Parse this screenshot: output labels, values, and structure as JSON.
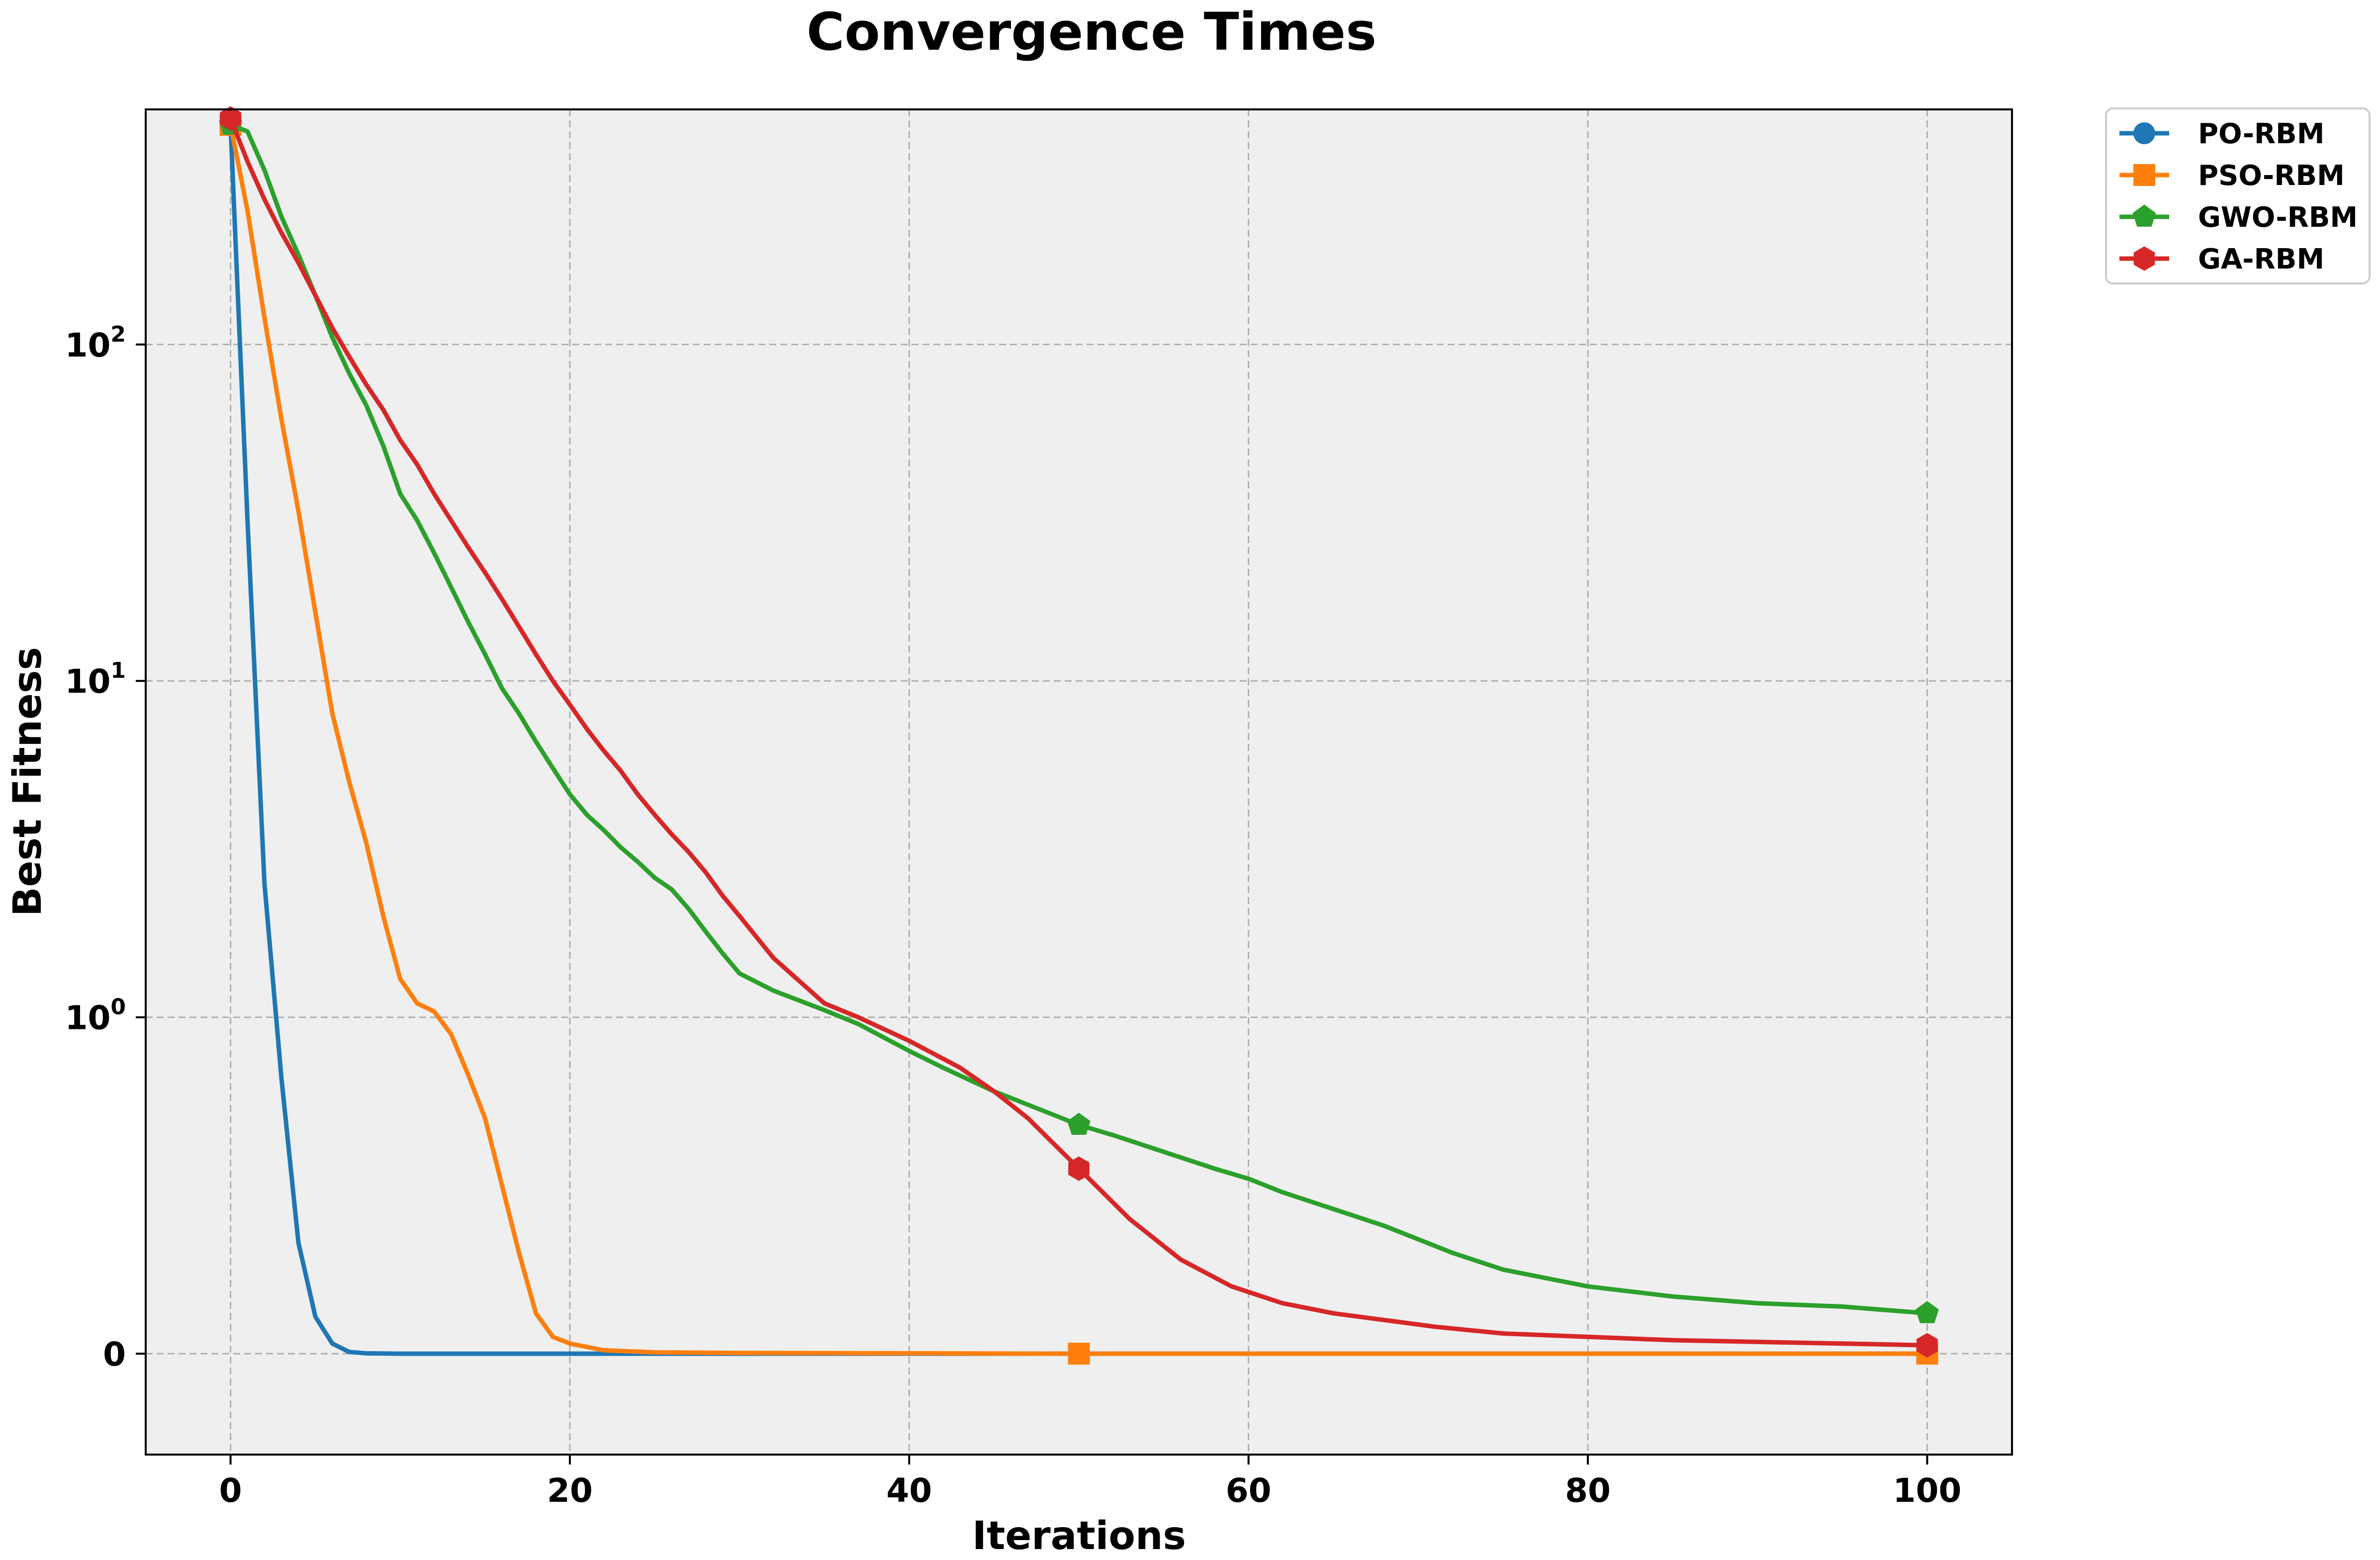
{
  "chart_data": {
    "type": "line",
    "title": "Convergence Times",
    "xlabel": "Iterations",
    "ylabel": "Best Fitness",
    "xlim": [
      -5,
      105
    ],
    "yscale": "symlog",
    "y_linthresh": 1,
    "ylim": [
      -0.3,
      500
    ],
    "grid": true,
    "legend_position": "outside-top-right",
    "x_ticks": [
      {
        "value": 0,
        "label": "0"
      },
      {
        "value": 20,
        "label": "20"
      },
      {
        "value": 40,
        "label": "40"
      },
      {
        "value": 60,
        "label": "60"
      },
      {
        "value": 80,
        "label": "80"
      },
      {
        "value": 100,
        "label": "100"
      }
    ],
    "y_ticks": [
      {
        "value": 0,
        "base": "0",
        "exp": ""
      },
      {
        "value": 1,
        "base": "10",
        "exp": "0"
      },
      {
        "value": 10,
        "base": "10",
        "exp": "1"
      },
      {
        "value": 100,
        "base": "10",
        "exp": "2"
      }
    ],
    "marker_every": 50,
    "series": [
      {
        "name": "PO-RBM",
        "color": "#1f77b4",
        "marker": "circle",
        "x": [
          0,
          1,
          2,
          3,
          4,
          5,
          6,
          7,
          8,
          10,
          15,
          20,
          30,
          50,
          100
        ],
        "y": [
          450,
          30,
          2.5,
          0.82,
          0.33,
          0.11,
          0.03,
          0.005,
          0.001,
          0,
          0,
          0,
          0,
          0,
          0
        ]
      },
      {
        "name": "PSO-RBM",
        "color": "#ff7f0e",
        "marker": "square",
        "x": [
          0,
          1,
          2,
          3,
          4,
          5,
          6,
          7,
          8,
          9,
          10,
          11,
          12,
          13,
          14,
          15,
          16,
          17,
          18,
          19,
          20,
          21,
          22,
          25,
          30,
          50,
          100
        ],
        "y": [
          450,
          250,
          120,
          60,
          32,
          16,
          8,
          5,
          3.3,
          2,
          1.3,
          1.1,
          1.04,
          0.95,
          0.83,
          0.7,
          0.5,
          0.3,
          0.12,
          0.05,
          0.03,
          0.02,
          0.01,
          0.004,
          0.002,
          0,
          0
        ]
      },
      {
        "name": "GWO-RBM",
        "color": "#2ca02c",
        "marker": "pentagon",
        "x": [
          0,
          1,
          2,
          3,
          4,
          5,
          6,
          7,
          8,
          9,
          10,
          11,
          12,
          13,
          14,
          15,
          16,
          17,
          18,
          19,
          20,
          21,
          22,
          23,
          24,
          25,
          26,
          27,
          28,
          29,
          30,
          32,
          35,
          37,
          40,
          42,
          45,
          48,
          50,
          52,
          55,
          58,
          60,
          62,
          65,
          68,
          70,
          72,
          75,
          80,
          85,
          90,
          95,
          100
        ],
        "y": [
          450,
          430,
          330,
          240,
          185,
          140,
          105,
          82,
          66,
          50,
          36,
          30,
          24,
          19,
          15,
          12,
          9.5,
          8,
          6.6,
          5.5,
          4.6,
          4,
          3.6,
          3.2,
          2.9,
          2.6,
          2.4,
          2.1,
          1.8,
          1.55,
          1.35,
          1.2,
          1.05,
          0.98,
          0.9,
          0.85,
          0.78,
          0.72,
          0.68,
          0.65,
          0.6,
          0.55,
          0.52,
          0.48,
          0.43,
          0.38,
          0.34,
          0.3,
          0.25,
          0.2,
          0.17,
          0.15,
          0.14,
          0.12
        ]
      },
      {
        "name": "GA-RBM",
        "color": "#d62728",
        "marker": "hexagon",
        "x": [
          0,
          1,
          2,
          3,
          4,
          5,
          6,
          7,
          8,
          9,
          10,
          11,
          12,
          13,
          14,
          15,
          16,
          17,
          18,
          19,
          20,
          21,
          22,
          23,
          24,
          25,
          26,
          27,
          28,
          29,
          30,
          32,
          35,
          37,
          40,
          43,
          45,
          47,
          50,
          53,
          56,
          59,
          62,
          65,
          68,
          71,
          75,
          80,
          85,
          90,
          95,
          100
        ],
        "y": [
          470,
          350,
          270,
          215,
          175,
          140,
          112,
          92,
          76,
          64,
          52,
          44,
          36,
          30,
          25,
          21,
          17.5,
          14.5,
          12,
          10,
          8.5,
          7.2,
          6.2,
          5.4,
          4.6,
          4,
          3.5,
          3.1,
          2.7,
          2.3,
          2,
          1.5,
          1.1,
          1,
          0.93,
          0.85,
          0.78,
          0.7,
          0.55,
          0.4,
          0.28,
          0.2,
          0.15,
          0.12,
          0.1,
          0.08,
          0.06,
          0.05,
          0.04,
          0.035,
          0.03,
          0.025
        ]
      }
    ]
  }
}
